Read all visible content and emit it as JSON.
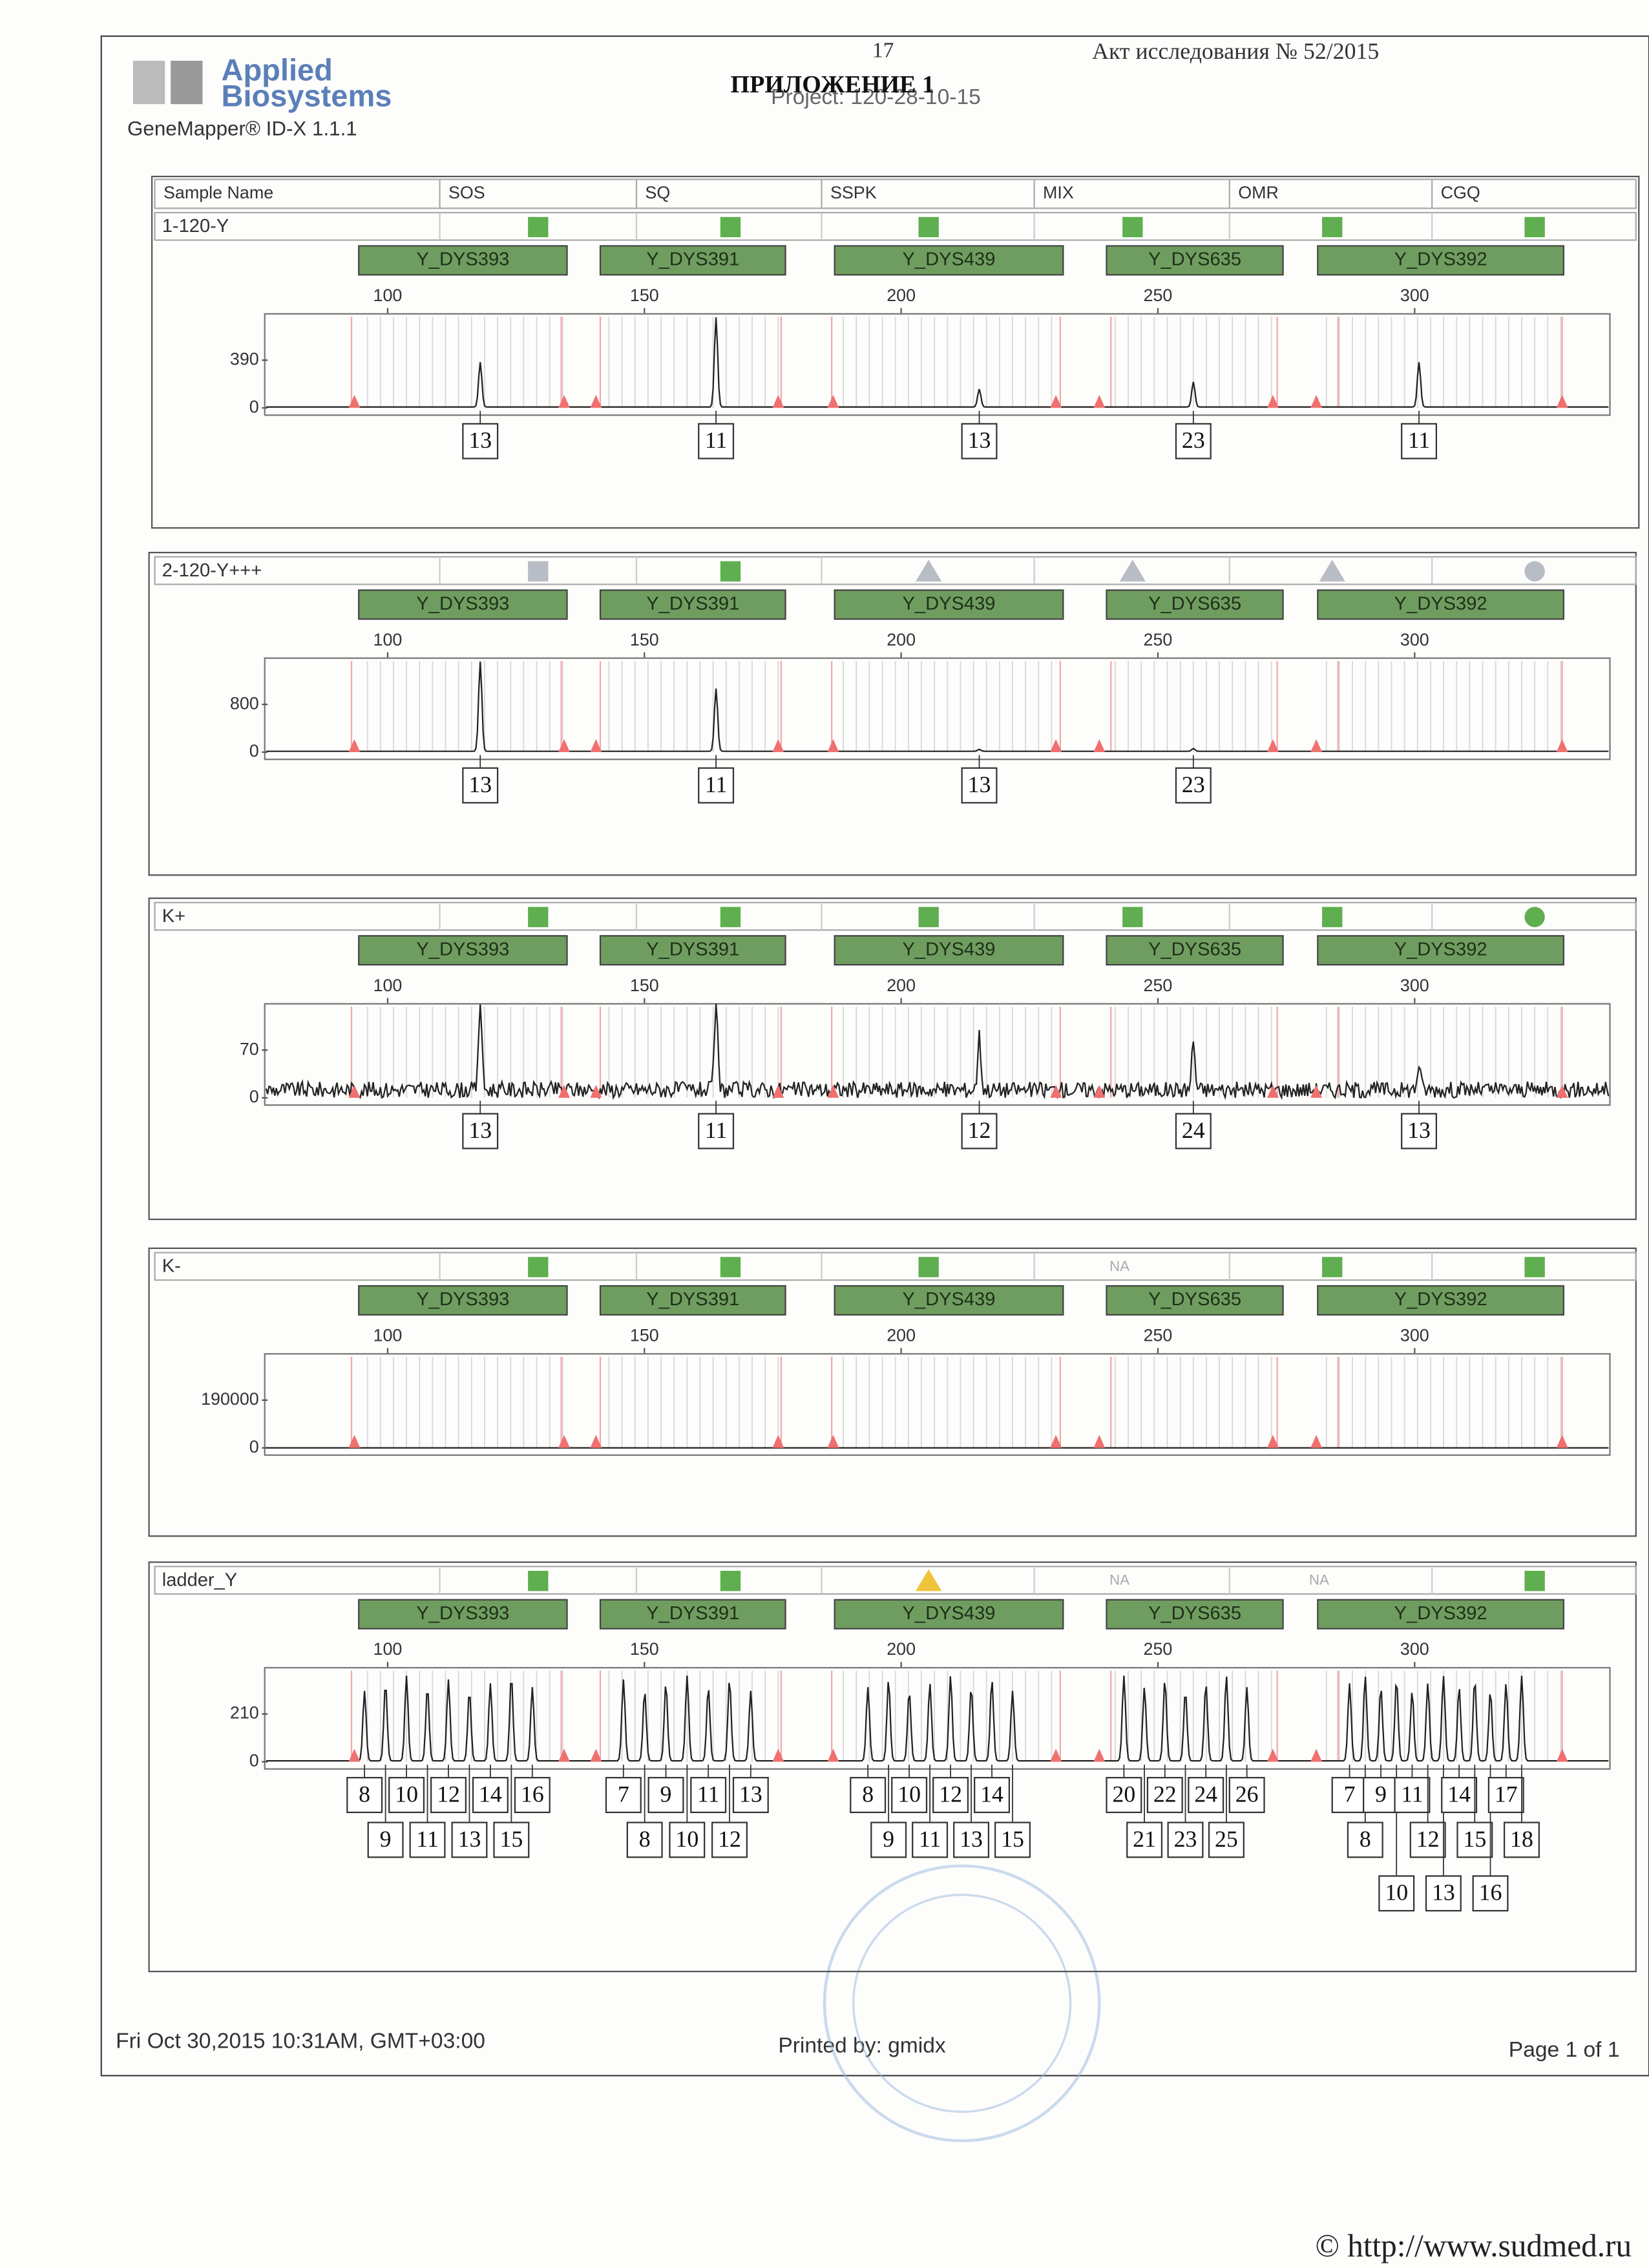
{
  "header": {
    "page_number": "17",
    "act": "Акт исследования № 52/2015",
    "title": "ПРИЛОЖЕНИЕ 1",
    "project": "Project: 120-28-10-15",
    "brand_line1": "Applied",
    "brand_line2": "Biosystems",
    "software": "GeneMapper® ID-X  1.1.1"
  },
  "columns": [
    "Sample Name",
    "SOS",
    "SQ",
    "SSPK",
    "MIX",
    "OMR",
    "CGQ"
  ],
  "markers": [
    "Y_DYS393",
    "Y_DYS391",
    "Y_DYS439",
    "Y_DYS635",
    "Y_DYS392"
  ],
  "size_ticks": [
    "100",
    "150",
    "200",
    "250",
    "300"
  ],
  "samples": [
    {
      "name": "1-120-Y",
      "flags": [
        "square-green",
        "square-green",
        "square-green",
        "square-green",
        "square-green",
        "square-green"
      ],
      "y_ticks": [
        "390",
        "0"
      ],
      "alleles": [
        [
          "13"
        ],
        [
          "11"
        ],
        [
          "13"
        ],
        [
          "23"
        ],
        [
          "11"
        ]
      ]
    },
    {
      "name": "2-120-Y+++",
      "flags": [
        "square-gray",
        "square-green",
        "triangle-gray",
        "triangle-gray",
        "triangle-gray",
        "circle-gray"
      ],
      "y_ticks": [
        "800",
        "0"
      ],
      "alleles": [
        [
          "13"
        ],
        [
          "11"
        ],
        [
          "13"
        ],
        [
          "23"
        ],
        []
      ]
    },
    {
      "name": "K+",
      "flags": [
        "square-green",
        "square-green",
        "square-green",
        "square-green",
        "square-green",
        "circle-green"
      ],
      "y_ticks": [
        "70",
        "0"
      ],
      "alleles": [
        [
          "13"
        ],
        [
          "11"
        ],
        [
          "12"
        ],
        [
          "24"
        ],
        [
          "13"
        ]
      ]
    },
    {
      "name": "K-",
      "flags": [
        "square-green",
        "square-green",
        "square-green",
        "NA",
        "square-green",
        "square-green"
      ],
      "y_ticks": [
        "190000",
        "0"
      ],
      "alleles": [
        [],
        [],
        [],
        [],
        []
      ]
    },
    {
      "name": "ladder_Y",
      "flags": [
        "square-green",
        "square-green",
        "triangle-yellow",
        "NA",
        "NA",
        "square-green"
      ],
      "y_ticks": [
        "210",
        "0"
      ],
      "alleles": [
        [
          "8",
          "9",
          "10",
          "11",
          "12",
          "13",
          "14",
          "15",
          "16"
        ],
        [
          "7",
          "8",
          "9",
          "10",
          "11",
          "12",
          "13"
        ],
        [
          "8",
          "9",
          "10",
          "11",
          "12",
          "13",
          "14",
          "15"
        ],
        [
          "20",
          "21",
          "22",
          "23",
          "24",
          "25",
          "26"
        ],
        [
          "7",
          "8",
          "9",
          "10",
          "11",
          "12",
          "13",
          "14",
          "15",
          "16",
          "17",
          "18"
        ]
      ]
    }
  ],
  "footer": {
    "date": "Fri Oct 30,2015 10:31AM, GMT+03:00",
    "printed_by": "Printed by: gmidx",
    "page": "Page 1 of 1",
    "watermark": "© http://www.sudmed.ru"
  }
}
